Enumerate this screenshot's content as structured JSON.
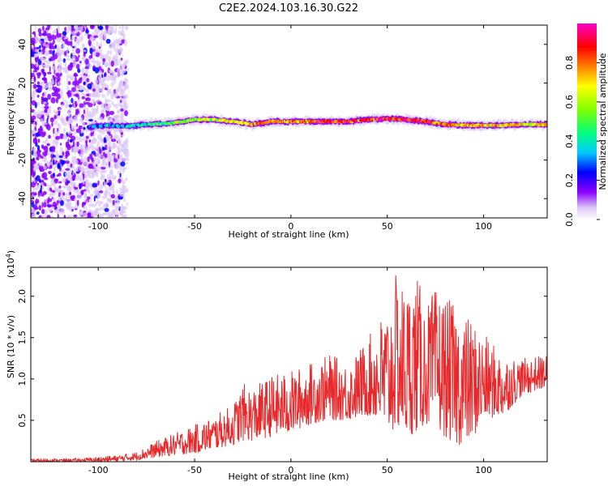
{
  "title": "C2E2.2024.103.16.30.G22",
  "chart_data": [
    {
      "type": "heatmap",
      "xlabel": "Height of straight line (km)",
      "ylabel": "Frequency (Hz)",
      "xlim": [
        -135,
        133
      ],
      "ylim": [
        -50,
        50
      ],
      "xticks": [
        -100,
        -50,
        0,
        50,
        100
      ],
      "yticks": [
        -40,
        -20,
        0,
        20,
        40
      ],
      "colorbar": {
        "label": "Normalized spectral amplitude",
        "range": [
          0,
          1
        ],
        "ticks": [
          "0.0",
          "0.2",
          "0.4",
          "0.6",
          "0.8"
        ],
        "tick_values": [
          0.0,
          0.2,
          0.4,
          0.6,
          0.8
        ],
        "colors": [
          "#ffffff",
          "#dcc8f5",
          "#8b00ff",
          "#0000ff",
          "#00c8ff",
          "#00ff80",
          "#7fff00",
          "#ffff00",
          "#ff8000",
          "#ff0000",
          "#ff00c8"
        ]
      },
      "ridge_frequency": {
        "x": [
          -105,
          -95,
          -85,
          -75,
          -65,
          -55,
          -50,
          -40,
          -30,
          -20,
          -10,
          0,
          10,
          20,
          30,
          40,
          50,
          60,
          70,
          80,
          90,
          100,
          110,
          120,
          133
        ],
        "y": [
          -3,
          -2,
          -2.5,
          -1.5,
          -1,
          0,
          1,
          1,
          0,
          -1.5,
          0,
          0,
          0,
          0,
          0,
          1,
          1.5,
          1,
          0,
          -1.5,
          -2,
          -2,
          -2,
          -1.5,
          -1.5
        ]
      },
      "ridge_amplitude": {
        "x": [
          -105,
          -90,
          -75,
          -60,
          -50,
          -40,
          -30,
          -20,
          -10,
          0,
          10,
          20,
          30,
          40,
          50,
          60,
          70,
          80,
          90,
          100,
          110,
          120,
          133
        ],
        "a": [
          0.35,
          0.4,
          0.45,
          0.55,
          0.6,
          0.65,
          0.7,
          0.75,
          0.8,
          0.8,
          0.85,
          0.85,
          0.85,
          0.85,
          0.9,
          0.9,
          0.85,
          0.8,
          0.75,
          0.75,
          0.75,
          0.7,
          0.7
        ]
      },
      "noise_region": [
        -135,
        -85
      ]
    },
    {
      "type": "line",
      "xlabel": "Height of straight line (km)",
      "ylabel": "SNR (10 * v/v)",
      "y_multiplier": "(x10",
      "y_multiplier_exp": "4",
      "y_multiplier_close": ")",
      "xlim": [
        -135,
        133
      ],
      "ylim": [
        0,
        2.35
      ],
      "xticks": [
        -100,
        -50,
        0,
        50,
        100
      ],
      "yticks": [
        0.5,
        1.0,
        1.5,
        2.0
      ],
      "ytick_labels": [
        "0.5",
        "1.0",
        "1.5",
        "2.0"
      ],
      "color": "#e8282a",
      "envelope": {
        "x": [
          -135,
          -110,
          -100,
          -90,
          -80,
          -70,
          -60,
          -50,
          -40,
          -30,
          -25,
          -20,
          -10,
          0,
          10,
          20,
          30,
          40,
          45,
          50,
          55,
          60,
          65,
          70,
          75,
          80,
          85,
          90,
          95,
          100,
          110,
          120,
          133
        ],
        "low": [
          0.0,
          0.0,
          0.0,
          0.0,
          0.02,
          0.05,
          0.08,
          0.1,
          0.15,
          0.2,
          0.25,
          0.25,
          0.3,
          0.35,
          0.45,
          0.5,
          0.5,
          0.55,
          0.5,
          0.3,
          0.4,
          0.3,
          0.35,
          0.45,
          0.4,
          0.3,
          0.2,
          0.2,
          0.3,
          0.5,
          0.55,
          0.8,
          0.9
        ],
        "high": [
          0.03,
          0.04,
          0.06,
          0.08,
          0.12,
          0.25,
          0.35,
          0.45,
          0.55,
          0.7,
          0.95,
          0.9,
          1.05,
          1.1,
          1.2,
          1.3,
          1.2,
          1.5,
          1.7,
          1.9,
          2.3,
          2.1,
          2.3,
          1.9,
          2.1,
          2.0,
          1.9,
          1.8,
          1.7,
          1.55,
          1.3,
          1.25,
          1.3
        ]
      }
    }
  ]
}
